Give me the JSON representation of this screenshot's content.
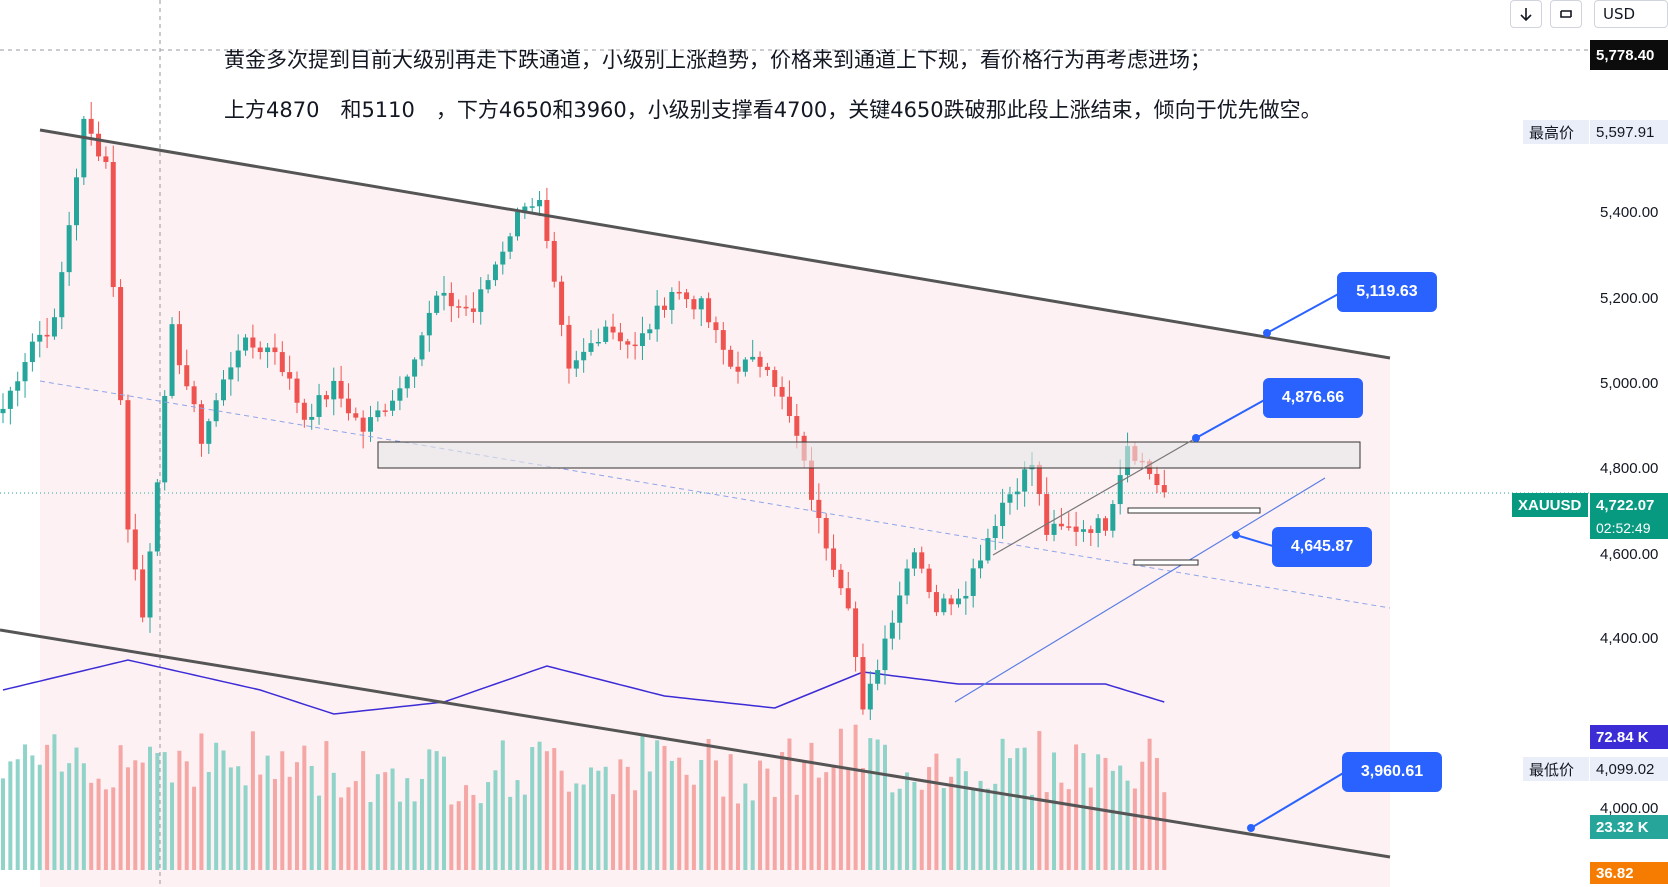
{
  "toolbar": {
    "download_icon": "download-arrow-icon",
    "cycle_icon": "loop-icon",
    "currency": "USD"
  },
  "annotations": {
    "line1": "黄金多次提到目前大级别再走下跌通道，小级别上涨趋势，价格来到通道上下规，看价格行为再考虑进场；",
    "line2": "上方4870　和5110　，下方4650和3960，小级别支撑看4700，关键4650跌破那此段上涨结束，倾向于优先做空。"
  },
  "price_axis": {
    "top_price": "5,778.40",
    "high_label": "最高价",
    "high_value": "5,597.91",
    "ticks": [
      "5,400.00",
      "5,200.00",
      "5,000.00",
      "4,800.00",
      "4,600.00",
      "4,400.00",
      "4,000.00"
    ],
    "low_label": "最低价",
    "low_value": "4,099.02",
    "symbol": "XAUUSD",
    "current_price": "4,722.07",
    "countdown": "02:52:49",
    "volume_ma": "72.84 K",
    "volume_value": "23.32 K",
    "indicator_value": "36.82"
  },
  "callouts": [
    {
      "label": "5,119.63"
    },
    {
      "label": "4,876.66"
    },
    {
      "label": "4,645.87"
    },
    {
      "label": "3,960.61"
    }
  ],
  "colors": {
    "up": "#26a69a",
    "down": "#ef5350",
    "volume_up": "#8fd3c9",
    "volume_down": "#f4a7a5",
    "channel": "#555555",
    "trend_line": "#5b7ee5",
    "callout": "#2962ff",
    "channel_fill": "#fdf1f3",
    "volume_ma_line": "#3c2cd6"
  },
  "chart_data": {
    "type": "candlestick",
    "symbol": "XAUUSD",
    "currency": "USD",
    "ylim": [
      3900,
      5800
    ],
    "highest": 5597.91,
    "lowest": 4099.02,
    "last": 4722.07,
    "key_levels": {
      "resistance": [
        4870,
        5110
      ],
      "support": [
        4650,
        3960
      ],
      "minor_support": 4700
    },
    "channel_targets": [
      5119.63,
      4876.66,
      4645.87,
      3960.61
    ],
    "price_path": [
      [
        0,
        4920
      ],
      [
        4,
        5080
      ],
      [
        7,
        5120
      ],
      [
        11,
        5590
      ],
      [
        14,
        5500
      ],
      [
        17,
        4650
      ],
      [
        19,
        4430
      ],
      [
        23,
        5100
      ],
      [
        27,
        4850
      ],
      [
        32,
        5070
      ],
      [
        37,
        5060
      ],
      [
        41,
        4900
      ],
      [
        45,
        4970
      ],
      [
        49,
        4870
      ],
      [
        54,
        4970
      ],
      [
        59,
        5180
      ],
      [
        64,
        5150
      ],
      [
        71,
        5410
      ],
      [
        73,
        5400
      ],
      [
        77,
        5000
      ],
      [
        82,
        5120
      ],
      [
        86,
        5060
      ],
      [
        91,
        5200
      ],
      [
        95,
        5160
      ],
      [
        99,
        5020
      ],
      [
        104,
        5030
      ],
      [
        108,
        4850
      ],
      [
        111,
        4650
      ],
      [
        115,
        4470
      ],
      [
        117,
        4200
      ],
      [
        120,
        4380
      ],
      [
        124,
        4600
      ],
      [
        127,
        4450
      ],
      [
        131,
        4500
      ],
      [
        136,
        4700
      ],
      [
        140,
        4790
      ],
      [
        142,
        4630
      ],
      [
        146,
        4640
      ],
      [
        150,
        4650
      ],
      [
        153,
        4840
      ],
      [
        158,
        4722
      ]
    ],
    "volume": [
      [
        0,
        44
      ],
      [
        20,
        54
      ],
      [
        40,
        47
      ],
      [
        55,
        43
      ],
      [
        70,
        46
      ],
      [
        85,
        49
      ],
      [
        100,
        45
      ],
      [
        115,
        52
      ],
      [
        125,
        47
      ],
      [
        140,
        49
      ],
      [
        158,
        46
      ]
    ],
    "volume_ma": [
      [
        0,
        60
      ],
      [
        17,
        70
      ],
      [
        35,
        60
      ],
      [
        45,
        52
      ],
      [
        60,
        56
      ],
      [
        74,
        68
      ],
      [
        90,
        58
      ],
      [
        105,
        54
      ],
      [
        117,
        66
      ],
      [
        130,
        62
      ],
      [
        150,
        62
      ],
      [
        158,
        56
      ]
    ]
  }
}
